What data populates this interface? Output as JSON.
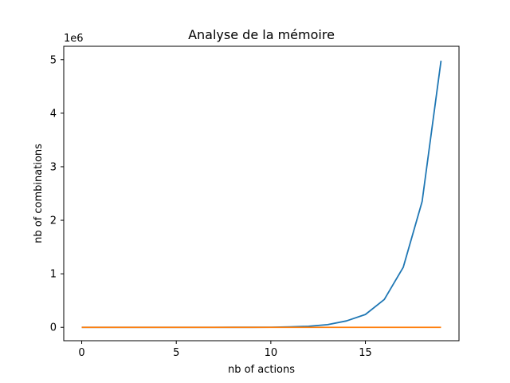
{
  "chart_data": {
    "type": "line",
    "title": "Analyse de la mémoire",
    "xlabel": "nb of actions",
    "ylabel": "nb of combinations",
    "y_offset_label": "1e6",
    "xlim": [
      -0.95,
      19.95
    ],
    "ylim": [
      -0.25,
      5.25
    ],
    "x_ticks": [
      0,
      5,
      10,
      15
    ],
    "x_tick_labels": [
      "0",
      "5",
      "10",
      "15"
    ],
    "y_ticks": [
      0,
      1,
      2,
      3,
      4,
      5
    ],
    "y_tick_labels": [
      "0",
      "1",
      "2",
      "3",
      "4",
      "5"
    ],
    "grid": false,
    "legend": "none",
    "series": [
      {
        "color": "#1f77b4",
        "x": [
          0,
          1,
          2,
          3,
          4,
          5,
          6,
          7,
          8,
          9,
          10,
          11,
          12,
          13,
          14,
          15,
          16,
          17,
          18,
          19
        ],
        "values": [
          1e-06,
          2e-06,
          4e-06,
          8e-06,
          1.6e-05,
          3.2e-05,
          6.4e-05,
          0.000128,
          0.000256,
          0.000512,
          0.001024,
          0.008,
          0.02,
          0.05,
          0.12,
          0.24,
          0.52,
          1.12,
          2.35,
          4.98
        ]
      },
      {
        "color": "#ff7f0e",
        "x": [
          0,
          1,
          2,
          3,
          4,
          5,
          6,
          7,
          8,
          9,
          10,
          11,
          12,
          13,
          14,
          15,
          16,
          17,
          18,
          19
        ],
        "values": [
          0,
          0,
          0,
          0,
          0,
          0,
          0,
          0,
          0,
          0,
          0,
          0,
          0,
          0,
          0,
          0,
          0,
          0,
          0,
          0
        ]
      }
    ]
  }
}
